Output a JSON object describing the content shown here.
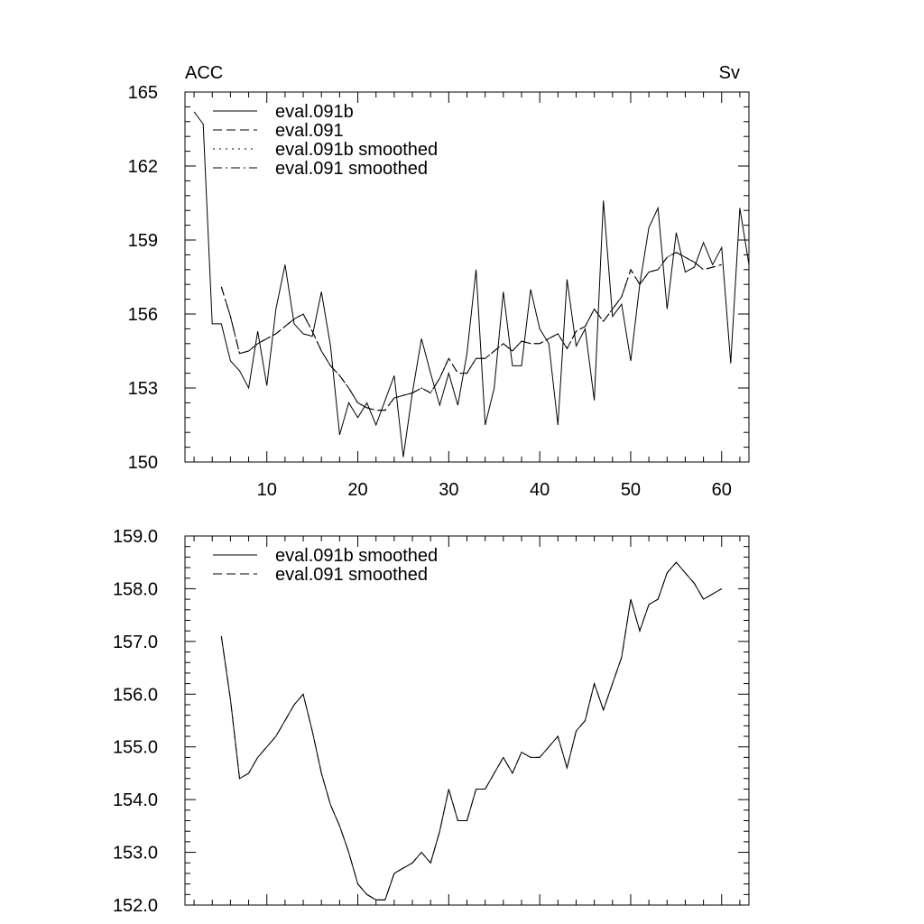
{
  "chart_data": [
    {
      "type": "line",
      "title_left": "ACC",
      "title_right": "Sv",
      "xlabel": "",
      "ylabel": "",
      "xlim": [
        1,
        63
      ],
      "ylim": [
        150,
        165
      ],
      "x_ticks": [
        10,
        20,
        30,
        40,
        50,
        60
      ],
      "x_tick_labels": [
        "10",
        "20",
        "30",
        "40",
        "50",
        "60"
      ],
      "y_ticks": [
        150,
        153,
        156,
        159,
        162,
        165
      ],
      "y_tick_labels": [
        "150",
        "153",
        "156",
        "159",
        "162",
        "165"
      ],
      "grid": false,
      "legend_position": "top-left",
      "series": [
        {
          "name": "eval.091b",
          "style": "solid",
          "x": [
            2,
            3,
            4,
            5,
            6,
            7,
            8,
            9,
            10,
            11,
            12,
            13,
            14,
            15,
            16,
            17,
            18,
            19,
            20,
            21,
            22,
            23,
            24,
            25,
            26,
            27,
            28,
            29,
            30,
            31,
            32,
            33,
            34,
            35,
            36,
            37,
            38,
            39,
            40,
            41,
            42,
            43,
            44,
            45,
            46,
            47,
            48,
            49,
            50,
            51,
            52,
            53,
            54,
            55,
            56,
            57,
            58,
            59,
            60,
            61,
            62,
            63
          ],
          "values": [
            164.2,
            163.7,
            155.6,
            155.6,
            154.1,
            153.7,
            153.0,
            155.3,
            153.1,
            156.2,
            158.0,
            155.6,
            155.2,
            155.1,
            156.9,
            154.7,
            151.1,
            152.4,
            151.8,
            152.4,
            151.5,
            152.5,
            153.5,
            150.2,
            152.8,
            155.0,
            153.6,
            152.3,
            153.6,
            152.3,
            154.4,
            157.8,
            151.5,
            153.0,
            156.9,
            153.9,
            153.9,
            157.0,
            155.4,
            154.8,
            151.5,
            157.4,
            154.7,
            155.4,
            152.5,
            160.6,
            155.9,
            156.4,
            154.1,
            157.2,
            159.5,
            160.3,
            156.2,
            159.3,
            157.7,
            157.9,
            158.9,
            158.0,
            158.7,
            154.0,
            160.3,
            158.0
          ]
        },
        {
          "name": "eval.091",
          "style": "dash",
          "x": [
            5,
            6,
            7,
            8,
            9,
            10,
            11,
            12,
            13,
            14,
            15,
            16,
            17,
            18,
            19,
            20,
            21,
            22,
            23,
            24,
            25,
            26,
            27,
            28,
            29,
            30,
            31,
            32,
            33,
            34,
            35,
            36,
            37,
            38,
            39,
            40,
            41,
            42,
            43,
            44,
            45,
            46,
            47,
            48,
            49,
            50,
            51,
            52,
            53,
            54,
            55,
            56,
            57,
            58,
            59,
            60
          ],
          "values": [
            157.1,
            155.9,
            154.4,
            154.5,
            154.8,
            155.0,
            155.2,
            155.5,
            155.8,
            156.0,
            155.3,
            154.5,
            153.9,
            153.5,
            153.0,
            152.4,
            152.2,
            152.1,
            152.1,
            152.6,
            152.7,
            152.8,
            153.0,
            152.8,
            153.4,
            154.2,
            153.6,
            153.6,
            154.2,
            154.2,
            154.5,
            154.8,
            154.5,
            154.9,
            154.8,
            154.8,
            155.0,
            155.2,
            154.6,
            155.3,
            155.5,
            156.2,
            155.7,
            156.2,
            156.7,
            157.8,
            157.2,
            157.7,
            157.8,
            158.3,
            158.5,
            158.3,
            158.1,
            157.8,
            157.9,
            158.0
          ]
        },
        {
          "name": "eval.091b smoothed",
          "style": "dot",
          "x": [
            5,
            6,
            7,
            8,
            9,
            10,
            11,
            12,
            13,
            14,
            15,
            16,
            17,
            18,
            19,
            20,
            21,
            22,
            23,
            24,
            25,
            26,
            27,
            28,
            29,
            30,
            31,
            32,
            33,
            34,
            35,
            36,
            37,
            38,
            39,
            40,
            41,
            42,
            43,
            44,
            45,
            46,
            47,
            48,
            49,
            50,
            51,
            52,
            53,
            54,
            55,
            56,
            57,
            58,
            59,
            60
          ],
          "values": [
            157.1,
            155.9,
            154.4,
            154.5,
            154.8,
            155.0,
            155.2,
            155.5,
            155.8,
            156.0,
            155.3,
            154.5,
            153.9,
            153.5,
            153.0,
            152.4,
            152.2,
            152.1,
            152.1,
            152.6,
            152.7,
            152.8,
            153.0,
            152.8,
            153.4,
            154.2,
            153.6,
            153.6,
            154.2,
            154.2,
            154.5,
            154.8,
            154.5,
            154.9,
            154.8,
            154.8,
            155.0,
            155.2,
            154.6,
            155.3,
            155.5,
            156.2,
            155.7,
            156.2,
            156.7,
            157.8,
            157.2,
            157.7,
            157.8,
            158.3,
            158.5,
            158.3,
            158.1,
            157.8,
            157.9,
            158.0
          ]
        },
        {
          "name": "eval.091 smoothed",
          "style": "dashdot",
          "x": [
            5,
            6,
            7,
            8,
            9,
            10,
            11,
            12,
            13,
            14,
            15,
            16,
            17,
            18,
            19,
            20,
            21,
            22,
            23,
            24,
            25,
            26,
            27,
            28,
            29,
            30,
            31,
            32,
            33,
            34,
            35,
            36,
            37,
            38,
            39,
            40,
            41,
            42,
            43,
            44,
            45,
            46,
            47,
            48,
            49,
            50,
            51,
            52,
            53,
            54,
            55,
            56,
            57,
            58,
            59,
            60
          ],
          "values": [
            157.1,
            155.9,
            154.4,
            154.5,
            154.8,
            155.0,
            155.2,
            155.5,
            155.8,
            156.0,
            155.3,
            154.5,
            153.9,
            153.5,
            153.0,
            152.4,
            152.2,
            152.1,
            152.1,
            152.6,
            152.7,
            152.8,
            153.0,
            152.8,
            153.4,
            154.2,
            153.6,
            153.6,
            154.2,
            154.2,
            154.5,
            154.8,
            154.5,
            154.9,
            154.8,
            154.8,
            155.0,
            155.2,
            154.6,
            155.3,
            155.5,
            156.2,
            155.7,
            156.2,
            156.7,
            157.8,
            157.2,
            157.7,
            157.8,
            158.3,
            158.5,
            158.3,
            158.1,
            157.8,
            157.9,
            158.0
          ]
        }
      ]
    },
    {
      "type": "line",
      "xlabel": "",
      "ylabel": "",
      "xlim": [
        1,
        63
      ],
      "ylim": [
        152.0,
        159.0
      ],
      "x_ticks": [
        10,
        20,
        30,
        40,
        50,
        60
      ],
      "x_tick_labels": [],
      "y_ticks": [
        152,
        153,
        154,
        155,
        156,
        157,
        158,
        159
      ],
      "y_tick_labels": [
        "152.0",
        "153.0",
        "154.0",
        "155.0",
        "156.0",
        "157.0",
        "158.0",
        "159.0"
      ],
      "grid": false,
      "legend_position": "top-left",
      "series": [
        {
          "name": "eval.091b smoothed",
          "style": "solid",
          "x": [
            5,
            6,
            7,
            8,
            9,
            10,
            11,
            12,
            13,
            14,
            15,
            16,
            17,
            18,
            19,
            20,
            21,
            22,
            23,
            24,
            25,
            26,
            27,
            28,
            29,
            30,
            31,
            32,
            33,
            34,
            35,
            36,
            37,
            38,
            39,
            40,
            41,
            42,
            43,
            44,
            45,
            46,
            47,
            48,
            49,
            50,
            51,
            52,
            53,
            54,
            55,
            56,
            57,
            58,
            59,
            60
          ],
          "values": [
            157.1,
            155.9,
            154.4,
            154.5,
            154.8,
            155.0,
            155.2,
            155.5,
            155.8,
            156.0,
            155.3,
            154.5,
            153.9,
            153.5,
            153.0,
            152.4,
            152.2,
            152.1,
            152.1,
            152.6,
            152.7,
            152.8,
            153.0,
            152.8,
            153.4,
            154.2,
            153.6,
            153.6,
            154.2,
            154.2,
            154.5,
            154.8,
            154.5,
            154.9,
            154.8,
            154.8,
            155.0,
            155.2,
            154.6,
            155.3,
            155.5,
            156.2,
            155.7,
            156.2,
            156.7,
            157.8,
            157.2,
            157.7,
            157.8,
            158.3,
            158.5,
            158.3,
            158.1,
            157.8,
            157.9,
            158.0
          ]
        },
        {
          "name": "eval.091 smoothed",
          "style": "dash",
          "x": [
            5,
            6,
            7,
            8,
            9,
            10,
            11,
            12,
            13,
            14,
            15,
            16,
            17,
            18,
            19,
            20,
            21,
            22,
            23,
            24,
            25,
            26,
            27,
            28,
            29,
            30,
            31,
            32,
            33,
            34,
            35,
            36,
            37,
            38,
            39,
            40,
            41,
            42,
            43,
            44,
            45,
            46,
            47,
            48,
            49,
            50,
            51,
            52,
            53,
            54,
            55,
            56,
            57,
            58,
            59,
            60
          ],
          "values": [
            157.1,
            155.9,
            154.4,
            154.5,
            154.8,
            155.0,
            155.2,
            155.5,
            155.8,
            156.0,
            155.3,
            154.5,
            153.9,
            153.5,
            153.0,
            152.4,
            152.2,
            152.1,
            152.1,
            152.6,
            152.7,
            152.8,
            153.0,
            152.8,
            153.4,
            154.2,
            153.6,
            153.6,
            154.2,
            154.2,
            154.5,
            154.8,
            154.5,
            154.9,
            154.8,
            154.8,
            155.0,
            155.2,
            154.6,
            155.3,
            155.5,
            156.2,
            155.7,
            156.2,
            156.7,
            157.8,
            157.2,
            157.7,
            157.8,
            158.3,
            158.5,
            158.3,
            158.1,
            157.8,
            157.9,
            158.0
          ]
        }
      ]
    }
  ]
}
